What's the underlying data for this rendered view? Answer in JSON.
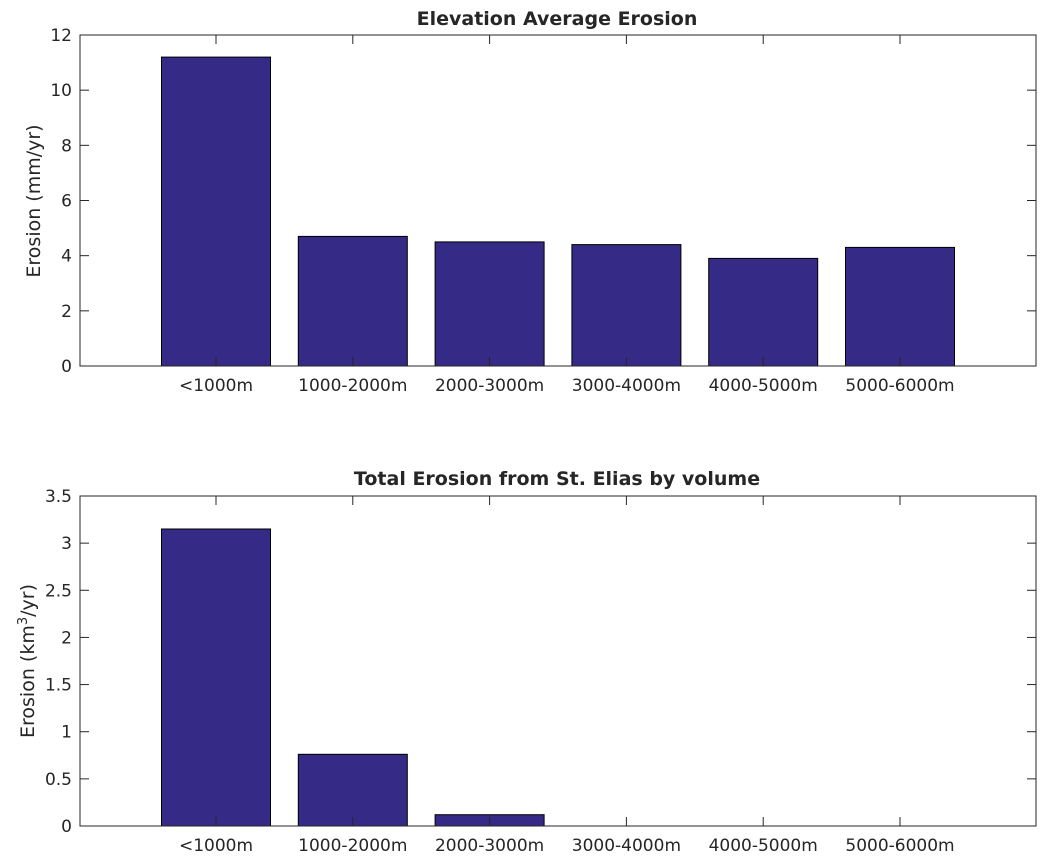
{
  "chart_data": [
    {
      "type": "bar",
      "title": "Elevation Average Erosion",
      "ylabel": "Erosion (mm/yr)",
      "categories": [
        "<1000m",
        "1000-2000m",
        "2000-3000m",
        "3000-4000m",
        "4000-5000m",
        "5000-6000m"
      ],
      "values": [
        11.2,
        4.7,
        4.5,
        4.4,
        3.9,
        4.3
      ],
      "ylim": [
        0,
        12
      ],
      "yticks": [
        0,
        2,
        4,
        6,
        8,
        10,
        12
      ],
      "ytick_labels": [
        "0",
        "2",
        "4",
        "6",
        "8",
        "10",
        "12"
      ],
      "bar_color": "#352a86"
    },
    {
      "type": "bar",
      "title": "Total Erosion from St. Elias by volume",
      "ylabel": {
        "pre": "Erosion (km",
        "sup": "3",
        "post": "/yr)"
      },
      "categories": [
        "<1000m",
        "1000-2000m",
        "2000-3000m",
        "3000-4000m",
        "4000-5000m",
        "5000-6000m"
      ],
      "values": [
        3.15,
        0.76,
        0.12,
        0,
        0,
        0
      ],
      "ylim": [
        0,
        3.5
      ],
      "yticks": [
        0,
        0.5,
        1,
        1.5,
        2,
        2.5,
        3,
        3.5
      ],
      "ytick_labels": [
        "0",
        "0.5",
        "1",
        "1.5",
        "2",
        "2.5",
        "3",
        "3.5"
      ],
      "bar_color": "#352a86"
    }
  ]
}
